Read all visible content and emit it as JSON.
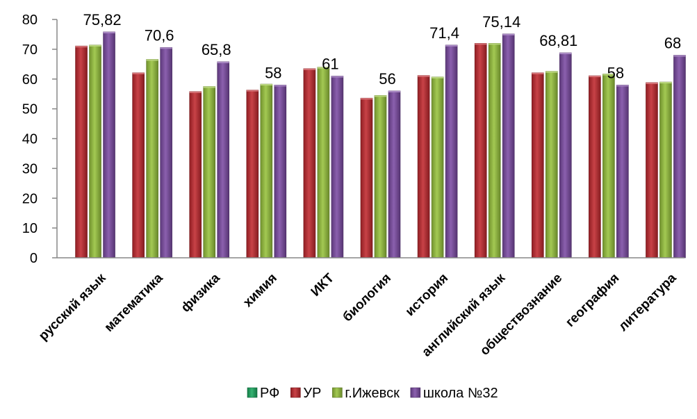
{
  "chart_data": {
    "type": "bar",
    "title": "",
    "xlabel": "",
    "ylabel": "",
    "ylim": [
      0,
      80
    ],
    "yticks": [
      0,
      10,
      20,
      30,
      40,
      50,
      60,
      70,
      80
    ],
    "grid": false,
    "legend_position": "bottom",
    "categories": [
      "русский язык",
      "математика",
      "физика",
      "химия",
      "ИКТ",
      "биология",
      "история",
      "английский язык",
      "обществознание",
      "география",
      "литература"
    ],
    "series": [
      {
        "name": "РФ",
        "color": "#1aa85f",
        "values": [
          null,
          null,
          null,
          null,
          null,
          null,
          null,
          null,
          null,
          null,
          null
        ]
      },
      {
        "name": "УР",
        "color": "#c0282e",
        "values": [
          71.1,
          62.1,
          55.8,
          56.3,
          63.5,
          53.6,
          61.2,
          72.0,
          62.1,
          61.1,
          58.8
        ]
      },
      {
        "name": "г.Ижевск",
        "color": "#96c23c",
        "values": [
          71.4,
          66.6,
          57.5,
          58.3,
          64.0,
          54.5,
          60.7,
          72.0,
          62.6,
          61.7,
          59.0
        ]
      },
      {
        "name": "школа №32",
        "color": "#7b4aa3",
        "values": [
          75.82,
          70.6,
          65.8,
          58,
          61,
          56,
          71.4,
          75.14,
          68.81,
          58,
          68
        ]
      }
    ],
    "data_labels": [
      "75,82",
      "70,6",
      "65,8",
      "58",
      "61",
      "56",
      "71,4",
      "75,14",
      "68,81",
      "58",
      "68"
    ]
  }
}
